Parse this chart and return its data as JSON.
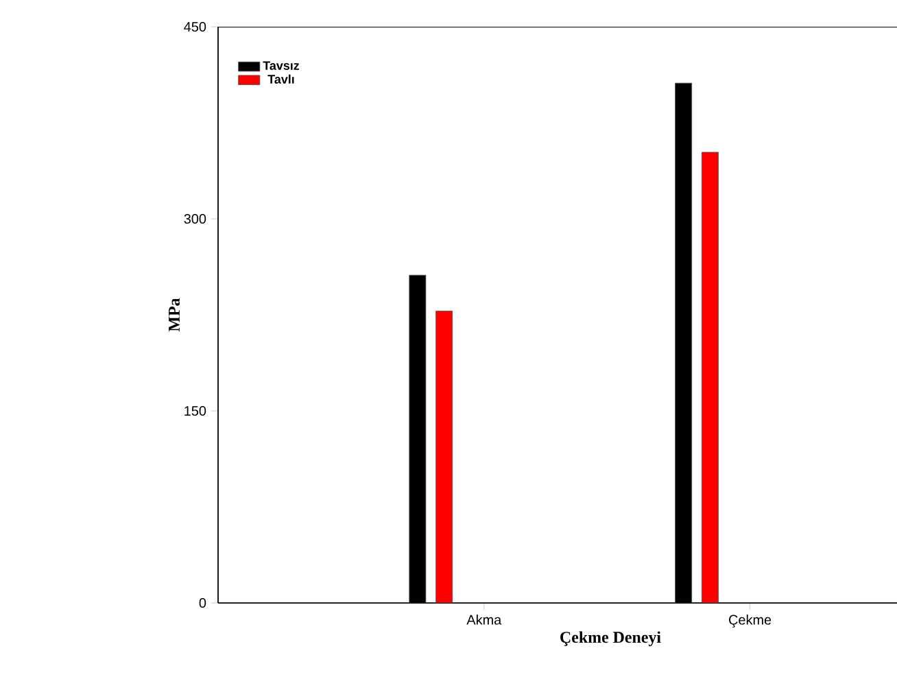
{
  "chart_data": {
    "type": "bar",
    "xlabel": "Çekme Deneyi",
    "ylabel": "MPa",
    "categories": [
      "Akma",
      "Çekme"
    ],
    "series": [
      {
        "name": "Tavsız",
        "color": "#000000",
        "values": [
          256,
          406
        ]
      },
      {
        "name": "Tavlı",
        "color": "#ff0000",
        "values": [
          228,
          352
        ]
      }
    ],
    "ylim": [
      0,
      450
    ],
    "yticks": [
      0,
      150,
      300,
      450
    ],
    "legend": "top left"
  }
}
